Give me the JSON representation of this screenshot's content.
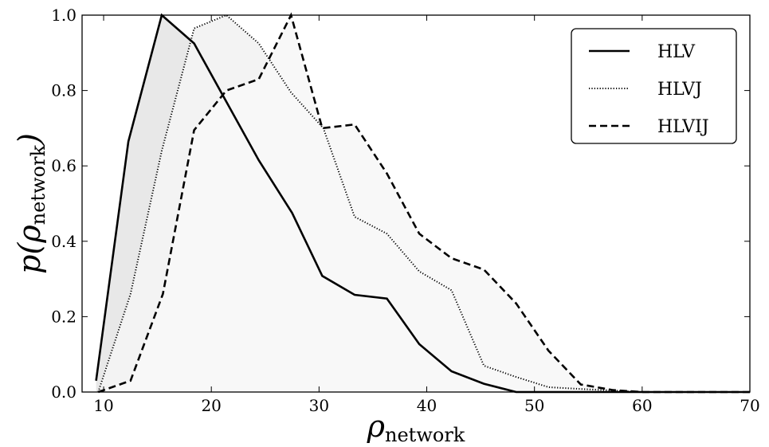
{
  "chart_data": {
    "type": "line",
    "xlabel": {
      "main": "ρ",
      "sub": "network"
    },
    "ylabel": {
      "prefix": "p(",
      "main": "ρ",
      "sub": "network",
      "suffix": ")"
    },
    "xlim": [
      8,
      70
    ],
    "ylim": [
      0,
      1.0
    ],
    "xticks": [
      10,
      20,
      30,
      40,
      50,
      60,
      70
    ],
    "yticks": [
      0.0,
      0.2,
      0.4,
      0.6,
      0.8,
      1.0
    ],
    "ytick_labels": [
      "0.0",
      "0.2",
      "0.4",
      "0.6",
      "0.8",
      "1.0"
    ],
    "grid": false,
    "legend_position": "top-right",
    "series": [
      {
        "name": "HLV",
        "style": "solid",
        "fill": "#e8e8e8",
        "x": [
          9.3,
          12.3,
          15.4,
          18.4,
          21.4,
          24.4,
          27.5,
          30.3,
          33.3,
          36.3,
          39.3,
          42.3,
          45.3,
          48.3,
          51.3,
          54.3,
          57.3,
          60.0,
          70.0
        ],
        "y": [
          0.03,
          0.665,
          1.0,
          0.925,
          0.77,
          0.615,
          0.475,
          0.308,
          0.258,
          0.248,
          0.127,
          0.055,
          0.022,
          0.0,
          0.0,
          0.0,
          0.0,
          0.0,
          0.0
        ]
      },
      {
        "name": "HLVJ",
        "style": "dotted",
        "fill": "#f3f3f3",
        "x": [
          9.5,
          12.5,
          15.4,
          18.4,
          21.4,
          24.4,
          27.4,
          30.4,
          33.3,
          36.3,
          39.3,
          42.3,
          45.3,
          48.3,
          51.3,
          54.3,
          57.3,
          60.0,
          70.0
        ],
        "y": [
          0.0,
          0.26,
          0.64,
          0.965,
          1.0,
          0.925,
          0.795,
          0.7,
          0.465,
          0.42,
          0.32,
          0.27,
          0.07,
          0.04,
          0.013,
          0.008,
          0.004,
          0.0,
          0.0
        ]
      },
      {
        "name": "HLVIJ",
        "style": "dashed",
        "fill": "#f8f8f8",
        "x": [
          9.5,
          12.5,
          15.5,
          18.4,
          21.4,
          24.4,
          27.4,
          30.3,
          33.3,
          36.3,
          39.3,
          42.3,
          45.3,
          48.3,
          51.3,
          54.3,
          57.3,
          60.0,
          70.0
        ],
        "y": [
          0.0,
          0.03,
          0.26,
          0.695,
          0.8,
          0.83,
          1.0,
          0.7,
          0.71,
          0.58,
          0.42,
          0.355,
          0.325,
          0.235,
          0.11,
          0.02,
          0.005,
          0.0,
          0.0
        ]
      }
    ]
  }
}
